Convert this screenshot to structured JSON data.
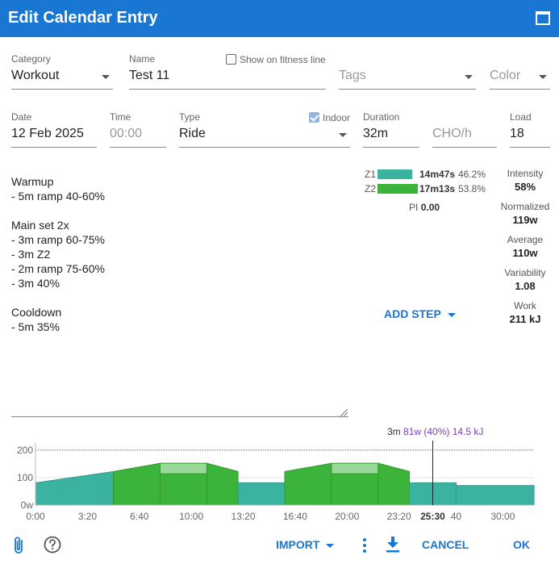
{
  "dialog": {
    "title": "Edit Calendar Entry"
  },
  "fields": {
    "category": {
      "label": "Category",
      "value": "Workout"
    },
    "name": {
      "label": "Name",
      "value": "Test 11"
    },
    "show_fitness": {
      "label": "Show on fitness line",
      "checked": false
    },
    "tags": {
      "placeholder": "Tags"
    },
    "color": {
      "placeholder": "Color"
    },
    "date": {
      "label": "Date",
      "value": "12 Feb 2025"
    },
    "time": {
      "label": "Time",
      "placeholder": "00:00"
    },
    "type": {
      "label": "Type",
      "value": "Ride"
    },
    "indoor": {
      "label": "Indoor",
      "checked": true
    },
    "duration": {
      "label": "Duration",
      "value": "32m"
    },
    "cho": {
      "placeholder": "CHO/h"
    },
    "load": {
      "label": "Load",
      "value": "18"
    }
  },
  "description": "Warmup\n- 5m ramp 40-60%\n\nMain set 2x\n- 3m ramp 60-75%\n- 3m Z2\n- 2m ramp 75-60%\n- 3m 40%\n\nCooldown\n- 5m 35%",
  "zones": [
    {
      "zone": "Z1",
      "time": "14m47s",
      "percent": "46.2%",
      "fraction": 0.462,
      "color": "#3ab3a0"
    },
    {
      "zone": "Z2",
      "time": "17m13s",
      "percent": "53.8%",
      "fraction": 0.538,
      "color": "#3cb43c"
    }
  ],
  "pi": {
    "label": "PI",
    "value": "0.00"
  },
  "stats": [
    {
      "label": "Intensity",
      "value": "58%"
    },
    {
      "label": "Normalized",
      "value": "119w"
    },
    {
      "label": "Average",
      "value": "110w"
    },
    {
      "label": "Variability",
      "value": "1.08"
    },
    {
      "label": "Work",
      "value": "211 kJ"
    }
  ],
  "add_step": "ADD STEP",
  "tooltip": {
    "duration": "3m",
    "details": "81w (40%) 14.5 kJ"
  },
  "chart_data": {
    "type": "area",
    "x_unit": "minutes",
    "ylim": [
      0,
      220
    ],
    "xlim": [
      0,
      32
    ],
    "y_ticks": [
      "0w",
      "100",
      "200"
    ],
    "x_ticks": [
      {
        "label": "0:00",
        "t": 0
      },
      {
        "label": "3:20",
        "t": 3.333
      },
      {
        "label": "6:40",
        "t": 6.667
      },
      {
        "label": "10:00",
        "t": 10
      },
      {
        "label": "13:20",
        "t": 13.333
      },
      {
        "label": "16:40",
        "t": 16.667
      },
      {
        "label": "20:00",
        "t": 20
      },
      {
        "label": "23:20",
        "t": 23.333
      },
      {
        "label": "25:30",
        "t": 25.5,
        "bold": true
      },
      {
        "label": "40",
        "t": 27
      },
      {
        "label": "30:00",
        "t": 30
      }
    ],
    "ftp_line": 200,
    "cursor_t": 25.5,
    "steps": [
      {
        "name": "Warmup ramp",
        "t0": 0,
        "t1": 5,
        "w0": 81,
        "w1": 122,
        "zone": "Z1"
      },
      {
        "name": "Ramp 60-75%",
        "t0": 5,
        "t1": 8,
        "w0": 122,
        "w1": 152,
        "zone": "Z2"
      },
      {
        "name": "Z2",
        "t0": 8,
        "t1": 11,
        "w0": 152,
        "w1": 152,
        "zone": "Z2",
        "inner": 114
      },
      {
        "name": "Ramp 75-60%",
        "t0": 11,
        "t1": 13,
        "w0": 152,
        "w1": 122,
        "zone": "Z2"
      },
      {
        "name": "40%",
        "t0": 13,
        "t1": 16,
        "w0": 81,
        "w1": 81,
        "zone": "Z1"
      },
      {
        "name": "Ramp 60-75%",
        "t0": 16,
        "t1": 19,
        "w0": 122,
        "w1": 152,
        "zone": "Z2"
      },
      {
        "name": "Z2",
        "t0": 19,
        "t1": 22,
        "w0": 152,
        "w1": 152,
        "zone": "Z2",
        "inner": 114
      },
      {
        "name": "Ramp 75-60%",
        "t0": 22,
        "t1": 24,
        "w0": 152,
        "w1": 122,
        "zone": "Z2"
      },
      {
        "name": "40%",
        "t0": 24,
        "t1": 27,
        "w0": 81,
        "w1": 81,
        "zone": "Z1"
      },
      {
        "name": "Cooldown 35%",
        "t0": 27,
        "t1": 32,
        "w0": 71,
        "w1": 71,
        "zone": "Z1"
      }
    ]
  },
  "footer": {
    "import": "IMPORT",
    "cancel": "CANCEL",
    "ok": "OK"
  },
  "colors": {
    "accent": "#1976d2",
    "z1": "#3ab3a0",
    "z2": "#3cb43c",
    "z2_light": "#9ad99a",
    "tooltip": "#7b3fb0"
  }
}
